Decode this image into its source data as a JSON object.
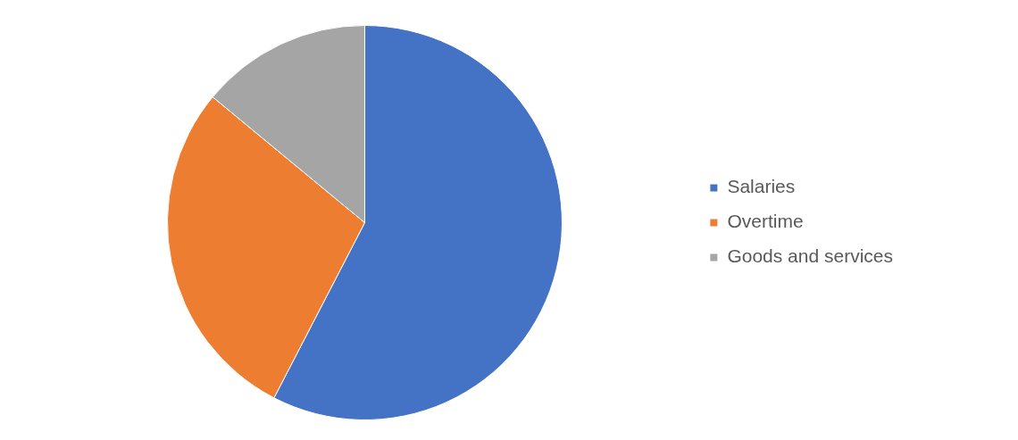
{
  "chart_data": {
    "type": "pie",
    "categories": [
      "Salaries",
      "Overtime",
      "Goods and services"
    ],
    "values": [
      57.6,
      28.4,
      14
    ],
    "colors": [
      "#4472c4",
      "#ed7d31",
      "#a5a5a5"
    ],
    "legend": "right"
  }
}
